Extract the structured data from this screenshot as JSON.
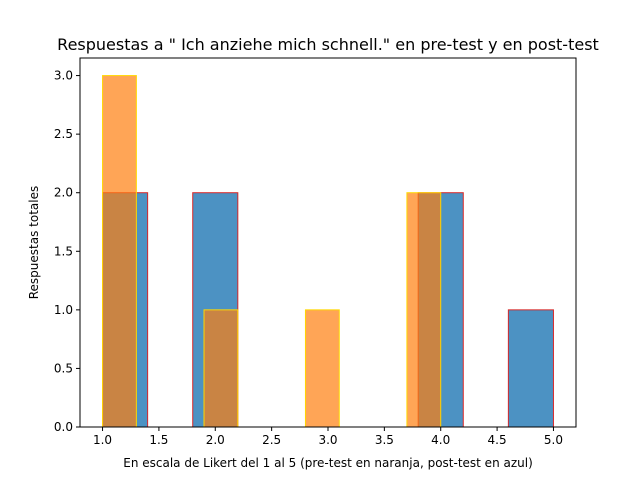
{
  "chart_data": {
    "type": "bar",
    "title": "Respuestas a \" Ich anziehe mich schnell.\" en pre-test y en post-test",
    "xlabel": "En escala de Likert del 1 al 5 (pre-test en naranja, post-test en azul)",
    "ylabel": "Respuestas totales",
    "xlim": [
      0.8,
      5.2
    ],
    "ylim": [
      0,
      3.15
    ],
    "xticks": [
      "1.0",
      "1.5",
      "2.0",
      "2.5",
      "3.0",
      "3.5",
      "4.0",
      "4.5",
      "5.0"
    ],
    "xtick_values": [
      1.0,
      1.5,
      2.0,
      2.5,
      3.0,
      3.5,
      4.0,
      4.5,
      5.0
    ],
    "yticks": [
      "0.0",
      "0.5",
      "1.0",
      "1.5",
      "2.0",
      "2.5",
      "3.0"
    ],
    "ytick_values": [
      0.0,
      0.5,
      1.0,
      1.5,
      2.0,
      2.5,
      3.0
    ],
    "grid": false,
    "series": [
      {
        "fill": "#1f77b4",
        "edge": "#d62728",
        "opacity": 0.8,
        "bins": [
          {
            "x0": 1.0,
            "x1": 1.4,
            "value": 2
          },
          {
            "x0": 1.8,
            "x1": 2.2,
            "value": 2
          },
          {
            "x0": 3.8,
            "x1": 4.2,
            "value": 2
          },
          {
            "x0": 4.6,
            "x1": 5.0,
            "value": 1
          }
        ]
      },
      {
        "fill": "#ff7f0e",
        "edge": "#ffd700",
        "opacity": 0.7,
        "bins": [
          {
            "x0": 1.0,
            "x1": 1.3,
            "value": 3
          },
          {
            "x0": 1.9,
            "x1": 2.2,
            "value": 1
          },
          {
            "x0": 2.8,
            "x1": 3.1,
            "value": 1
          },
          {
            "x0": 3.7,
            "x1": 4.0,
            "value": 2
          }
        ]
      }
    ]
  }
}
